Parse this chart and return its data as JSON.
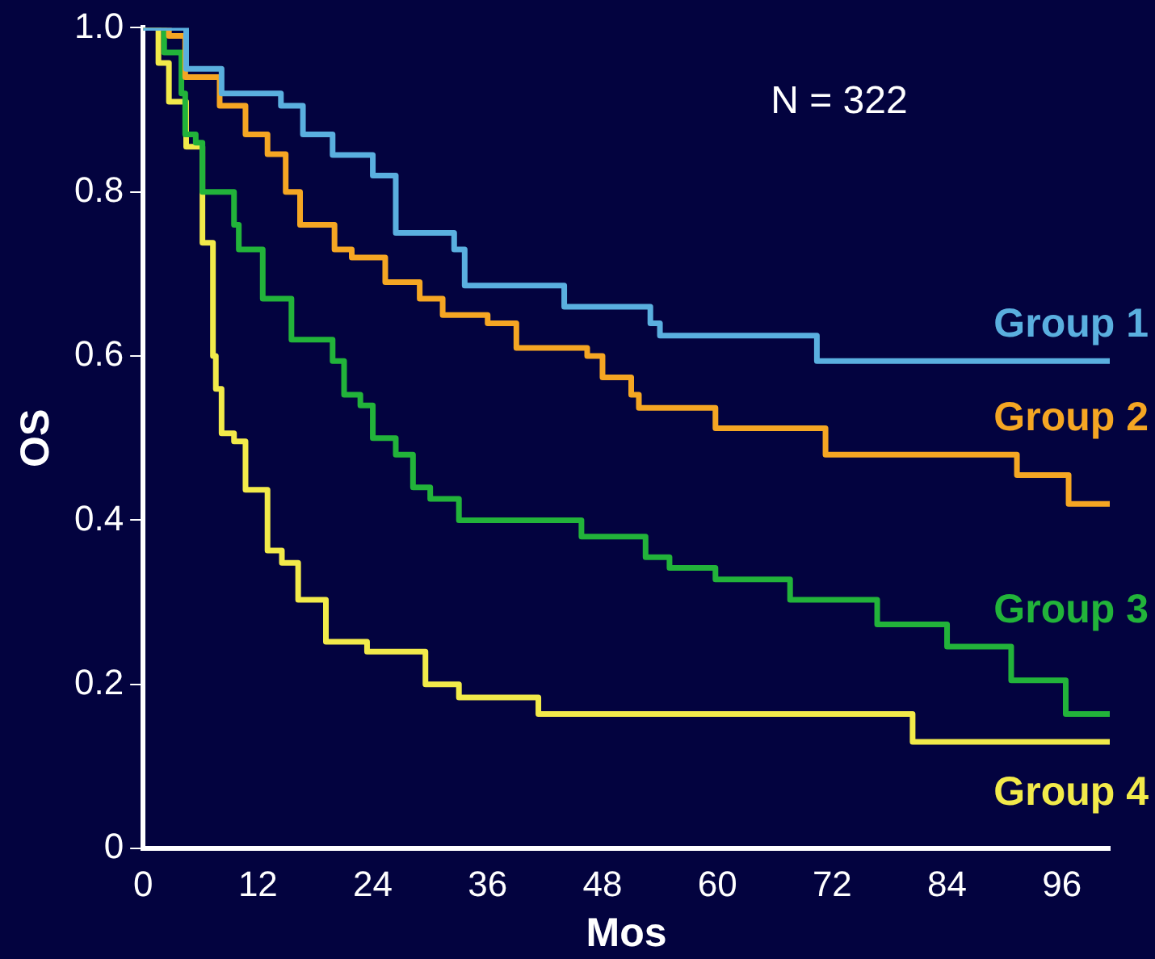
{
  "chart_data": {
    "type": "step",
    "xlabel": "Mos",
    "ylabel": "OS",
    "annotations": [
      "N = 322"
    ],
    "xlim": [
      0,
      101
    ],
    "xticks": [
      0,
      12,
      24,
      36,
      48,
      60,
      72,
      84,
      96
    ],
    "ylim": [
      0,
      1
    ],
    "yticks": [
      0,
      0.2,
      0.4,
      0.6,
      0.8,
      {
        "value": 1,
        "label": "1.0"
      }
    ],
    "grid": false,
    "marker": "none",
    "line_style": "solid",
    "series": [
      {
        "name": "Group 1",
        "color": "#5aafdf",
        "x": [
          0,
          4.5,
          8.2,
          14.4,
          16.7,
          19.8,
          24,
          26.4,
          32.5,
          33.6,
          44,
          53,
          54,
          70.4,
          101
        ],
        "values": [
          1,
          0.95,
          0.92,
          0.905,
          0.87,
          0.845,
          0.82,
          0.75,
          0.73,
          0.686,
          0.66,
          0.64,
          0.625,
          0.594,
          0.594
        ]
      },
      {
        "name": "Group 2",
        "color": "#f5a623",
        "x": [
          0,
          2.7,
          4.4,
          8,
          10.7,
          13,
          14.9,
          16.4,
          20,
          21.8,
          25.3,
          28.9,
          31.3,
          36,
          39,
          46.4,
          48,
          51,
          51.8,
          59.8,
          71.3,
          91.3,
          96.7,
          101
        ],
        "values": [
          1,
          0.99,
          0.94,
          0.905,
          0.87,
          0.846,
          0.8,
          0.76,
          0.73,
          0.72,
          0.69,
          0.67,
          0.65,
          0.64,
          0.61,
          0.6,
          0.574,
          0.553,
          0.537,
          0.512,
          0.48,
          0.455,
          0.42,
          0.42
        ]
      },
      {
        "name": "Group 3",
        "color": "#22b33a",
        "x": [
          0,
          2.2,
          4,
          4.4,
          5.5,
          6.2,
          9.5,
          10,
          12.5,
          15.5,
          19.8,
          21,
          22.7,
          24,
          26.4,
          28.2,
          30,
          33,
          45.8,
          52.5,
          55,
          59.8,
          67.6,
          76.7,
          84,
          90.7,
          96.4,
          101
        ],
        "values": [
          1,
          0.97,
          0.92,
          0.87,
          0.86,
          0.8,
          0.76,
          0.73,
          0.67,
          0.62,
          0.594,
          0.553,
          0.54,
          0.5,
          0.48,
          0.44,
          0.426,
          0.4,
          0.38,
          0.355,
          0.342,
          0.328,
          0.303,
          0.273,
          0.246,
          0.205,
          0.164,
          0.164
        ]
      },
      {
        "name": "Group 4",
        "color": "#f2ea4a",
        "x": [
          0,
          1.6,
          2.7,
          4.5,
          6.2,
          7.3,
          7.6,
          8.2,
          9.5,
          10.7,
          13,
          14.5,
          16.2,
          19.1,
          23.4,
          29.5,
          33,
          41.3,
          80.4,
          101
        ],
        "values": [
          1,
          0.957,
          0.91,
          0.855,
          0.738,
          0.6,
          0.56,
          0.506,
          0.496,
          0.437,
          0.363,
          0.348,
          0.303,
          0.252,
          0.24,
          0.2,
          0.184,
          0.164,
          0.13,
          0.13
        ]
      }
    ]
  }
}
